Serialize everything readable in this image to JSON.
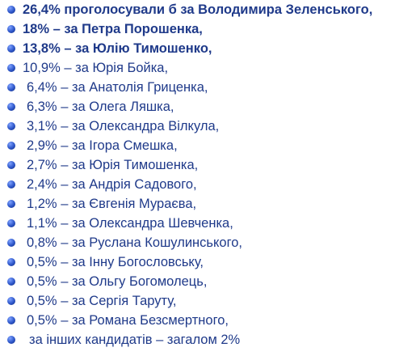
{
  "items": [
    "26,4% проголосували б за Володимира Зеленського,",
    "18% – за Петра Порошенка,",
    "13,8% – за Юлію Тимошенко,",
    "10,9% – за Юрія Бойка,",
    "6,4% – за Анатолія Гриценка,",
    "6,3% – за Олега Ляшка,",
    "3,1% – за Олександра Вілкула,",
    "2,9% – за Ігора Смешка,",
    "2,7% – за Юрія Тимошенка,",
    "2,4% – за Андрія Садового,",
    "1,2% – за Євгенія Мураєва,",
    "1,1% – за Олександра Шевченка,",
    "0,8% – за Руслана Кошулинського,",
    "0,5% – за Інну Богословську,",
    "0,5% – за Ольгу Богомолець,",
    "0,5% – за Сергія Таруту,",
    "0,5% – за Романа Безсмертного,",
    "за інших кандидатів – загалом  2%"
  ]
}
